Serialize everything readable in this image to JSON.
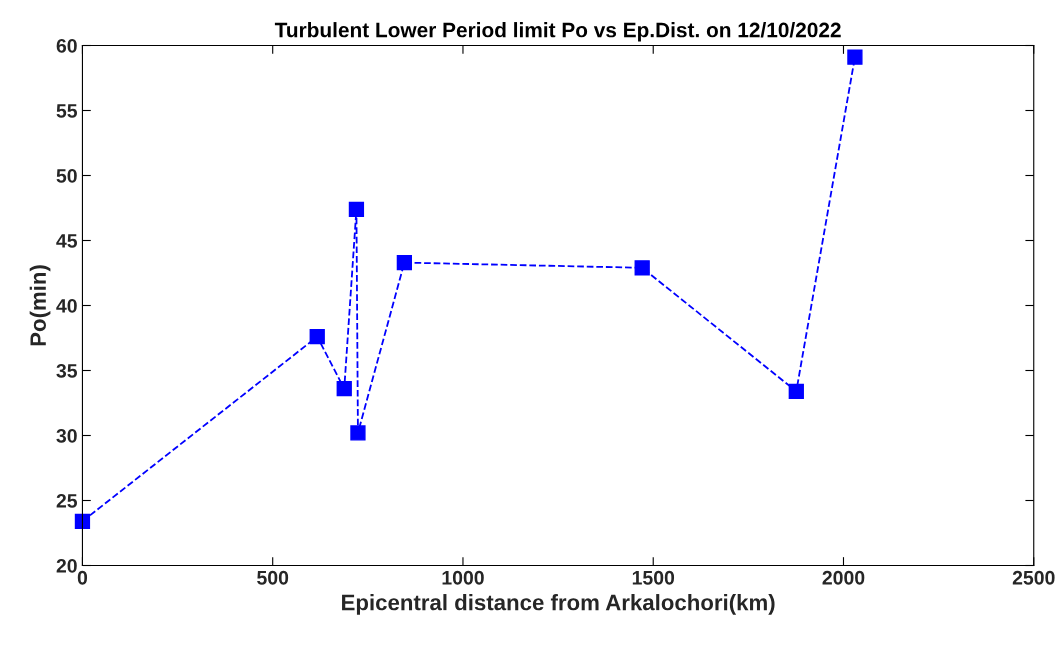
{
  "chart_data": {
    "type": "line",
    "title": "Turbulent Lower Period limit Po vs Ep.Dist. on 12/10/2022",
    "xlabel": "Epicentral distance from Arkalochori(km)",
    "ylabel": "Po(min)",
    "x": [
      0,
      617,
      688,
      720,
      724,
      846,
      1471,
      1876,
      2030
    ],
    "series": [
      {
        "color": "#0000ff",
        "values": [
          23.4,
          37.6,
          33.6,
          47.4,
          30.2,
          43.3,
          42.9,
          33.4,
          59.1
        ]
      }
    ],
    "xlim": [
      0,
      2500
    ],
    "xticks": [
      0,
      500,
      1000,
      1500,
      2000,
      2500
    ],
    "ylim": [
      20,
      60
    ],
    "yticks": [
      20,
      25,
      30,
      35,
      40,
      45,
      50,
      55,
      60
    ],
    "marker": "square",
    "line_style": "dashed",
    "grid": false,
    "legend": false
  }
}
